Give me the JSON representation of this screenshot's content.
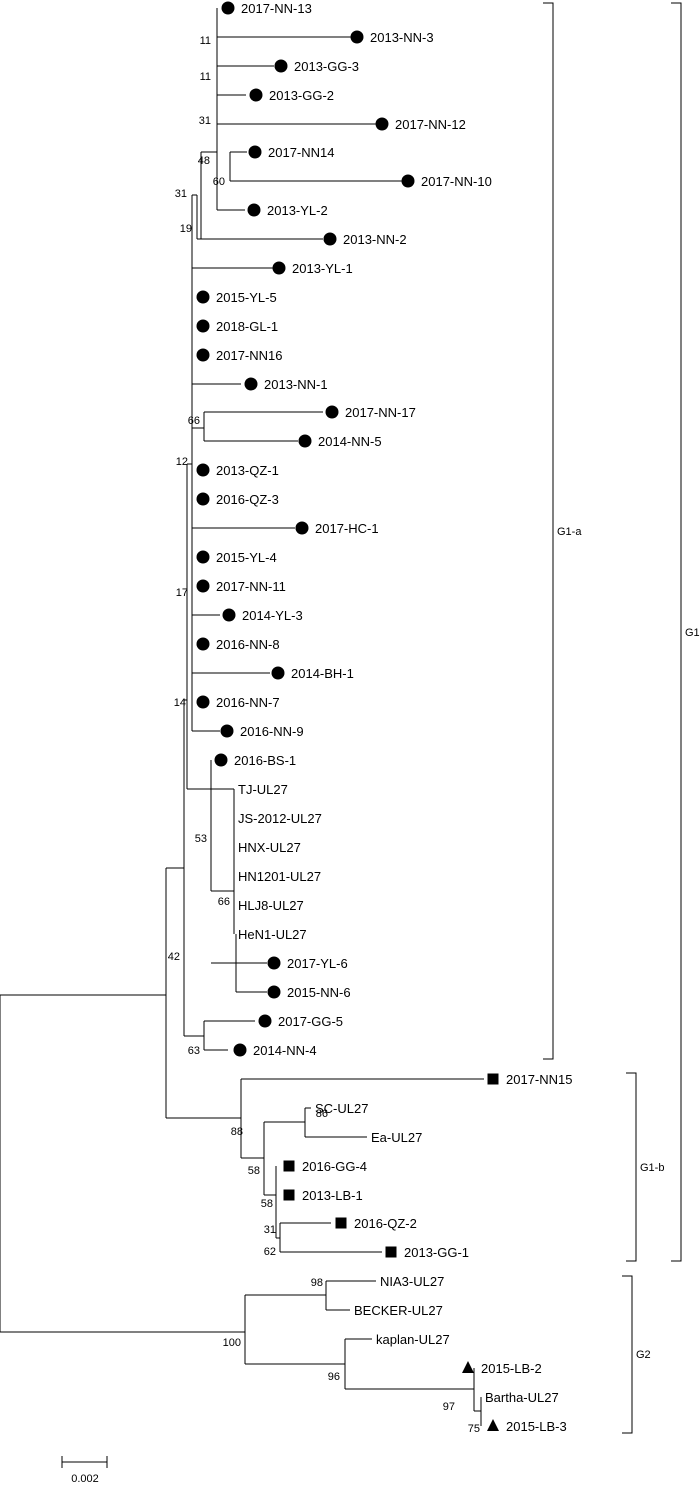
{
  "tips": [
    {
      "label": "2017-NN-13",
      "marker": "circle"
    },
    {
      "label": "2013-NN-3",
      "marker": "circle"
    },
    {
      "label": "2013-GG-3",
      "marker": "circle"
    },
    {
      "label": "2013-GG-2",
      "marker": "circle"
    },
    {
      "label": "2017-NN-12",
      "marker": "circle"
    },
    {
      "label": "2017-NN14",
      "marker": "circle"
    },
    {
      "label": "2017-NN-10",
      "marker": "circle"
    },
    {
      "label": "2013-YL-2",
      "marker": "circle"
    },
    {
      "label": "2013-NN-2",
      "marker": "circle"
    },
    {
      "label": "2013-YL-1",
      "marker": "circle"
    },
    {
      "label": "2015-YL-5",
      "marker": "circle"
    },
    {
      "label": "2018-GL-1",
      "marker": "circle"
    },
    {
      "label": "2017-NN16",
      "marker": "circle"
    },
    {
      "label": "2013-NN-1",
      "marker": "circle"
    },
    {
      "label": "2017-NN-17",
      "marker": "circle"
    },
    {
      "label": "2014-NN-5",
      "marker": "circle"
    },
    {
      "label": "2013-QZ-1",
      "marker": "circle"
    },
    {
      "label": "2016-QZ-3",
      "marker": "circle"
    },
    {
      "label": "2017-HC-1",
      "marker": "circle"
    },
    {
      "label": "2015-YL-4",
      "marker": "circle"
    },
    {
      "label": "2017-NN-11",
      "marker": "circle"
    },
    {
      "label": "2014-YL-3",
      "marker": "circle"
    },
    {
      "label": "2016-NN-8",
      "marker": "circle"
    },
    {
      "label": "2014-BH-1",
      "marker": "circle"
    },
    {
      "label": "2016-NN-7",
      "marker": "circle"
    },
    {
      "label": "2016-NN-9",
      "marker": "circle"
    },
    {
      "label": "2016-BS-1",
      "marker": "circle"
    },
    {
      "label": "TJ-UL27",
      "marker": "none"
    },
    {
      "label": "JS-2012-UL27",
      "marker": "none"
    },
    {
      "label": "HNX-UL27",
      "marker": "none"
    },
    {
      "label": "HN1201-UL27",
      "marker": "none"
    },
    {
      "label": "HLJ8-UL27",
      "marker": "none"
    },
    {
      "label": "HeN1-UL27",
      "marker": "none"
    },
    {
      "label": "2017-YL-6",
      "marker": "circle"
    },
    {
      "label": "2015-NN-6",
      "marker": "circle"
    },
    {
      "label": "2017-GG-5",
      "marker": "circle"
    },
    {
      "label": "2014-NN-4",
      "marker": "circle"
    },
    {
      "label": "2017-NN15",
      "marker": "square"
    },
    {
      "label": "SC-UL27",
      "marker": "none"
    },
    {
      "label": "Ea-UL27",
      "marker": "none"
    },
    {
      "label": "2016-GG-4",
      "marker": "square"
    },
    {
      "label": "2013-LB-1",
      "marker": "square"
    },
    {
      "label": "2016-QZ-2",
      "marker": "square"
    },
    {
      "label": "2013-GG-1",
      "marker": "square"
    },
    {
      "label": "NIA3-UL27",
      "marker": "none"
    },
    {
      "label": "BECKER-UL27",
      "marker": "none"
    },
    {
      "label": "kaplan-UL27",
      "marker": "none"
    },
    {
      "label": "2015-LB-2",
      "marker": "triangle"
    },
    {
      "label": "Bartha-UL27",
      "marker": "none"
    },
    {
      "label": "2015-LB-3",
      "marker": "triangle"
    }
  ],
  "bootstrap": [
    "11",
    "11",
    "31",
    "48",
    "60",
    "31",
    "19",
    "66",
    "12",
    "17",
    "14",
    "53",
    "66",
    "42",
    "63",
    "88",
    "86",
    "58",
    "58",
    "31",
    "62",
    "98",
    "100",
    "96",
    "97",
    "75"
  ],
  "groups": {
    "g1a": "G1-a",
    "g1b": "G1-b",
    "g1": "G1",
    "g2": "G2"
  },
  "scale_label": "0.002"
}
